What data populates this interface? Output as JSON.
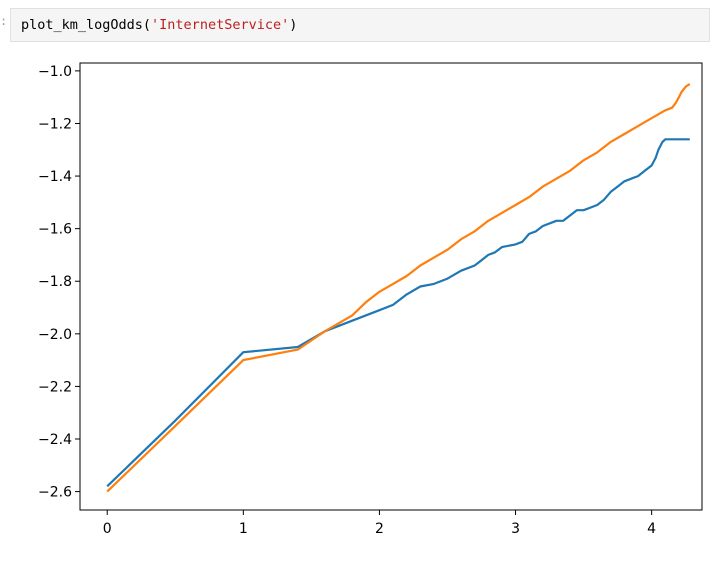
{
  "cell": {
    "prompt": ":",
    "code_func": "plot_km_logOdds(",
    "code_arg": "'InternetService'",
    "code_close": ")"
  },
  "chart_data": {
    "type": "line",
    "title": "",
    "xlabel": "",
    "ylabel": "",
    "xlim": [
      -0.2,
      4.37
    ],
    "ylim": [
      -2.67,
      -0.97
    ],
    "x_ticks": [
      0,
      1,
      2,
      3,
      4
    ],
    "x_tick_labels": [
      "0",
      "1",
      "2",
      "3",
      "4"
    ],
    "y_ticks": [
      -1.0,
      -1.2,
      -1.4,
      -1.6,
      -1.8,
      -2.0,
      -2.2,
      -2.4,
      -2.6
    ],
    "y_tick_labels": [
      "−1.0",
      "−1.2",
      "−1.4",
      "−1.6",
      "−1.8",
      "−2.0",
      "−2.2",
      "−2.4",
      "−2.6"
    ],
    "grid": false,
    "legend": "none",
    "series": [
      {
        "color": "#1f77b4",
        "points": [
          [
            0,
            -2.58
          ],
          [
            0.5,
            -2.33
          ],
          [
            1.0,
            -2.07
          ],
          [
            1.4,
            -2.05
          ],
          [
            1.6,
            -1.99
          ],
          [
            1.8,
            -1.95
          ],
          [
            2.0,
            -1.91
          ],
          [
            2.1,
            -1.89
          ],
          [
            2.2,
            -1.85
          ],
          [
            2.3,
            -1.82
          ],
          [
            2.4,
            -1.81
          ],
          [
            2.5,
            -1.79
          ],
          [
            2.6,
            -1.76
          ],
          [
            2.7,
            -1.74
          ],
          [
            2.75,
            -1.72
          ],
          [
            2.8,
            -1.7
          ],
          [
            2.85,
            -1.69
          ],
          [
            2.9,
            -1.67
          ],
          [
            3.0,
            -1.66
          ],
          [
            3.05,
            -1.65
          ],
          [
            3.1,
            -1.62
          ],
          [
            3.15,
            -1.61
          ],
          [
            3.2,
            -1.59
          ],
          [
            3.3,
            -1.57
          ],
          [
            3.35,
            -1.57
          ],
          [
            3.4,
            -1.55
          ],
          [
            3.45,
            -1.53
          ],
          [
            3.5,
            -1.53
          ],
          [
            3.55,
            -1.52
          ],
          [
            3.6,
            -1.51
          ],
          [
            3.65,
            -1.49
          ],
          [
            3.7,
            -1.46
          ],
          [
            3.75,
            -1.44
          ],
          [
            3.8,
            -1.42
          ],
          [
            3.85,
            -1.41
          ],
          [
            3.9,
            -1.4
          ],
          [
            3.95,
            -1.38
          ],
          [
            4.0,
            -1.36
          ],
          [
            4.03,
            -1.33
          ],
          [
            4.05,
            -1.3
          ],
          [
            4.08,
            -1.27
          ],
          [
            4.1,
            -1.26
          ],
          [
            4.15,
            -1.26
          ],
          [
            4.28,
            -1.26
          ]
        ]
      },
      {
        "color": "#ff7f0e",
        "points": [
          [
            0,
            -2.6
          ],
          [
            0.5,
            -2.35
          ],
          [
            1.0,
            -2.1
          ],
          [
            1.4,
            -2.06
          ],
          [
            1.6,
            -1.99
          ],
          [
            1.8,
            -1.93
          ],
          [
            1.9,
            -1.88
          ],
          [
            2.0,
            -1.84
          ],
          [
            2.2,
            -1.78
          ],
          [
            2.3,
            -1.74
          ],
          [
            2.4,
            -1.71
          ],
          [
            2.5,
            -1.68
          ],
          [
            2.6,
            -1.64
          ],
          [
            2.7,
            -1.61
          ],
          [
            2.8,
            -1.57
          ],
          [
            2.9,
            -1.54
          ],
          [
            3.0,
            -1.51
          ],
          [
            3.1,
            -1.48
          ],
          [
            3.2,
            -1.44
          ],
          [
            3.3,
            -1.41
          ],
          [
            3.4,
            -1.38
          ],
          [
            3.5,
            -1.34
          ],
          [
            3.6,
            -1.31
          ],
          [
            3.7,
            -1.27
          ],
          [
            3.8,
            -1.24
          ],
          [
            3.9,
            -1.21
          ],
          [
            4.0,
            -1.18
          ],
          [
            4.1,
            -1.15
          ],
          [
            4.15,
            -1.14
          ],
          [
            4.18,
            -1.12
          ],
          [
            4.2,
            -1.1
          ],
          [
            4.22,
            -1.08
          ],
          [
            4.25,
            -1.06
          ],
          [
            4.28,
            -1.05
          ]
        ]
      }
    ]
  }
}
